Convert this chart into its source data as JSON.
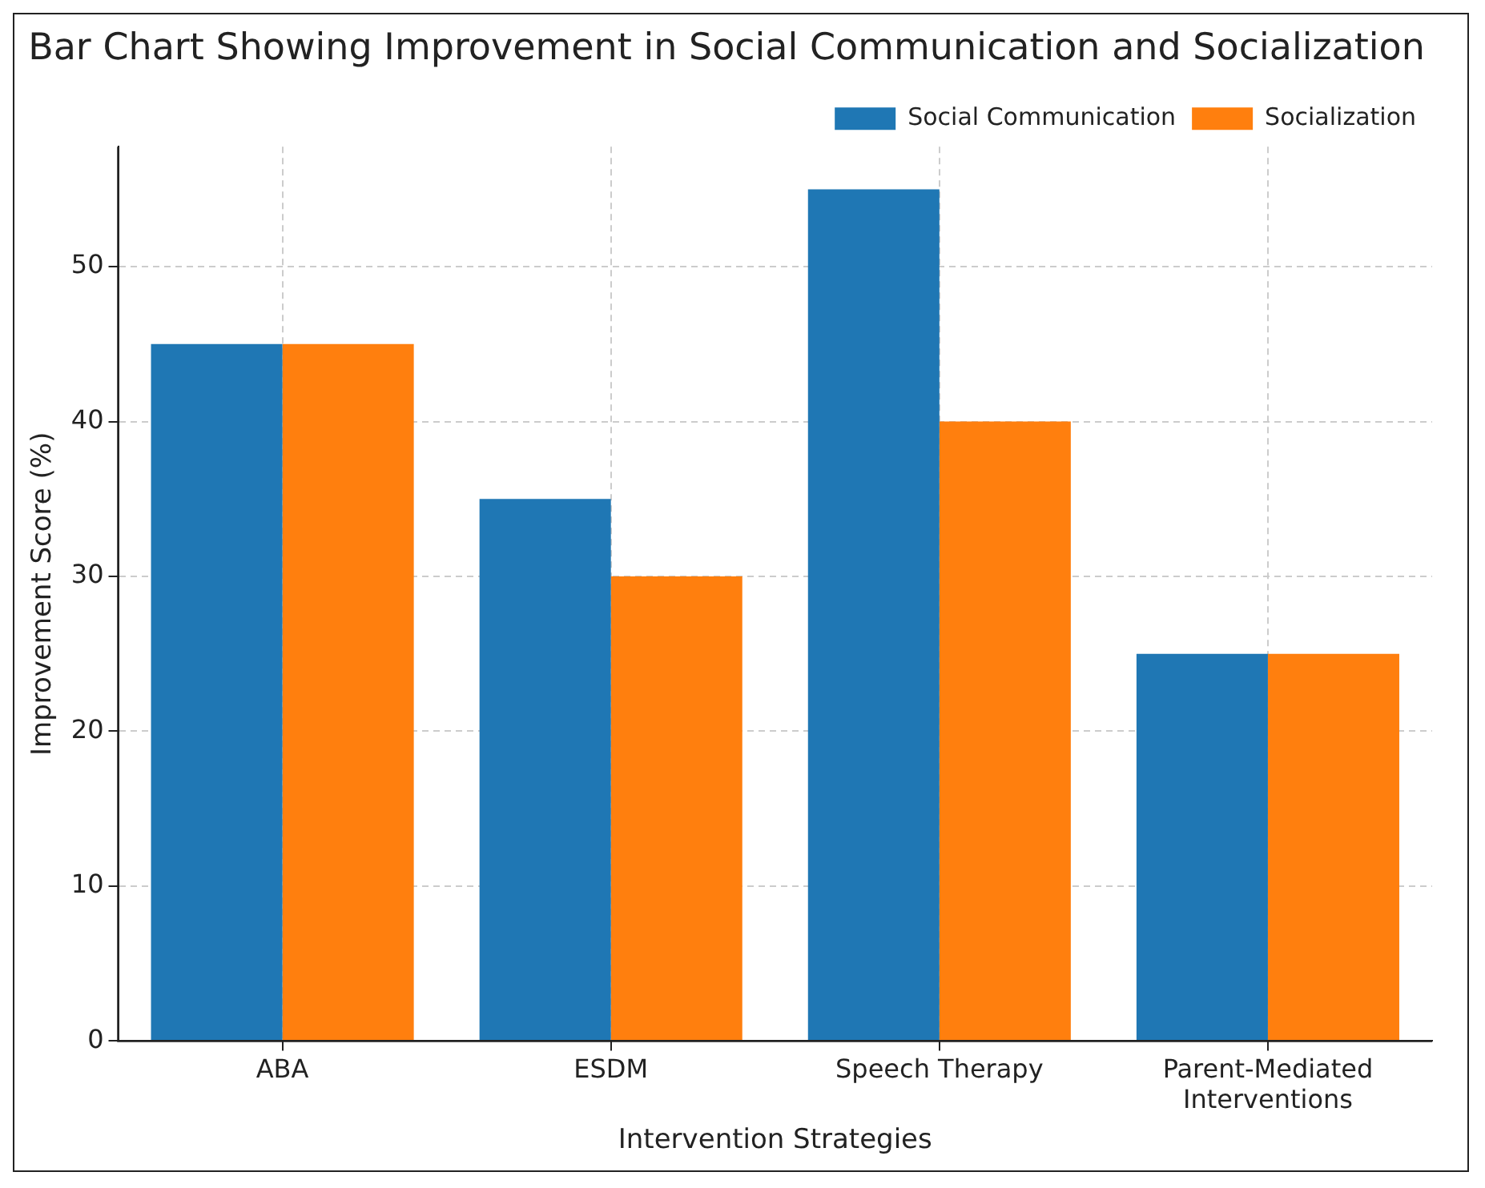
{
  "chart_data": {
    "type": "bar",
    "title": "Bar Chart Showing Improvement in Social Communication and Socialization",
    "xlabel": "Intervention Strategies",
    "ylabel": "Improvement Score (%)",
    "categories": [
      "ABA",
      "ESDM",
      "Speech Therapy",
      "Parent-Mediated Interventions"
    ],
    "series": [
      {
        "name": "Social Communication",
        "color": "#1f77b4",
        "values": [
          45,
          35,
          55,
          25
        ]
      },
      {
        "name": "Socialization",
        "color": "#ff7f0e",
        "values": [
          45,
          30,
          40,
          25
        ]
      }
    ],
    "ylim": [
      0,
      57.75
    ],
    "yticks": [
      0,
      10,
      20,
      30,
      40,
      50
    ],
    "grid": true,
    "legend": "top right"
  }
}
